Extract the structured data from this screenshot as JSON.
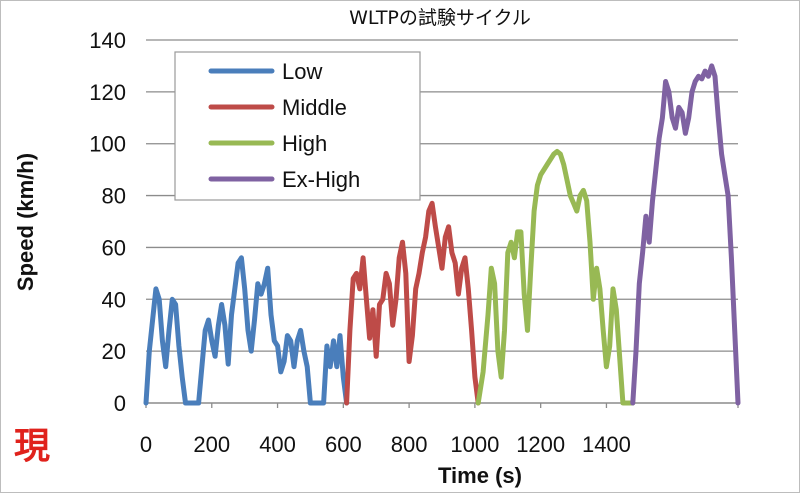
{
  "chart_data": {
    "type": "line",
    "title": "WLTPの試験サイクル",
    "xlabel": "Time (s)",
    "ylabel": "Speed (km/h)",
    "xlim": [
      0,
      1800
    ],
    "ylim": [
      0,
      140
    ],
    "xticks": [
      "0",
      "200",
      "400",
      "600",
      "800",
      "1000",
      "1200",
      "1400",
      ""
    ],
    "xtick_values": [
      0,
      200,
      400,
      600,
      800,
      1000,
      1200,
      1400,
      1800
    ],
    "yticks": [
      "0",
      "20",
      "40",
      "60",
      "80",
      "100",
      "120",
      "140"
    ],
    "ytick_values": [
      0,
      20,
      40,
      60,
      80,
      100,
      120,
      140
    ],
    "grid": "horizontal",
    "legend_position": "top-left",
    "series": [
      {
        "name": "Low",
        "color": "#4a7ebb",
        "points": [
          [
            0,
            0
          ],
          [
            10,
            20
          ],
          [
            20,
            32
          ],
          [
            30,
            44
          ],
          [
            40,
            40
          ],
          [
            50,
            24
          ],
          [
            60,
            14
          ],
          [
            70,
            28
          ],
          [
            80,
            40
          ],
          [
            90,
            38
          ],
          [
            100,
            22
          ],
          [
            110,
            10
          ],
          [
            120,
            0
          ],
          [
            160,
            0
          ],
          [
            170,
            14
          ],
          [
            180,
            28
          ],
          [
            190,
            32
          ],
          [
            200,
            24
          ],
          [
            210,
            18
          ],
          [
            220,
            30
          ],
          [
            230,
            38
          ],
          [
            240,
            30
          ],
          [
            250,
            15
          ],
          [
            260,
            34
          ],
          [
            270,
            44
          ],
          [
            280,
            54
          ],
          [
            290,
            56
          ],
          [
            300,
            44
          ],
          [
            310,
            28
          ],
          [
            320,
            20
          ],
          [
            330,
            32
          ],
          [
            340,
            46
          ],
          [
            350,
            42
          ],
          [
            360,
            46
          ],
          [
            370,
            52
          ],
          [
            380,
            34
          ],
          [
            390,
            24
          ],
          [
            400,
            22
          ],
          [
            410,
            12
          ],
          [
            420,
            16
          ],
          [
            430,
            26
          ],
          [
            440,
            24
          ],
          [
            450,
            14
          ],
          [
            460,
            24
          ],
          [
            470,
            28
          ],
          [
            480,
            20
          ],
          [
            490,
            14
          ],
          [
            500,
            0
          ],
          [
            540,
            0
          ],
          [
            550,
            22
          ],
          [
            560,
            14
          ],
          [
            570,
            24
          ],
          [
            580,
            14
          ],
          [
            590,
            26
          ],
          [
            600,
            10
          ],
          [
            610,
            0
          ]
        ]
      },
      {
        "name": "Middle",
        "color": "#be4b48",
        "points": [
          [
            610,
            0
          ],
          [
            620,
            28
          ],
          [
            630,
            48
          ],
          [
            640,
            50
          ],
          [
            650,
            44
          ],
          [
            660,
            56
          ],
          [
            670,
            40
          ],
          [
            680,
            25
          ],
          [
            690,
            36
          ],
          [
            700,
            18
          ],
          [
            710,
            38
          ],
          [
            720,
            40
          ],
          [
            730,
            50
          ],
          [
            740,
            46
          ],
          [
            750,
            30
          ],
          [
            760,
            40
          ],
          [
            770,
            56
          ],
          [
            780,
            62
          ],
          [
            790,
            50
          ],
          [
            800,
            16
          ],
          [
            810,
            26
          ],
          [
            820,
            44
          ],
          [
            830,
            50
          ],
          [
            840,
            58
          ],
          [
            850,
            64
          ],
          [
            860,
            74
          ],
          [
            870,
            77
          ],
          [
            880,
            68
          ],
          [
            890,
            60
          ],
          [
            900,
            52
          ],
          [
            910,
            64
          ],
          [
            920,
            68
          ],
          [
            930,
            58
          ],
          [
            940,
            54
          ],
          [
            950,
            42
          ],
          [
            960,
            52
          ],
          [
            970,
            56
          ],
          [
            980,
            44
          ],
          [
            990,
            28
          ],
          [
            1000,
            10
          ],
          [
            1010,
            0
          ]
        ]
      },
      {
        "name": "High",
        "color": "#98b954",
        "points": [
          [
            1010,
            0
          ],
          [
            1025,
            12
          ],
          [
            1040,
            34
          ],
          [
            1050,
            52
          ],
          [
            1060,
            46
          ],
          [
            1070,
            20
          ],
          [
            1080,
            10
          ],
          [
            1090,
            28
          ],
          [
            1100,
            58
          ],
          [
            1110,
            62
          ],
          [
            1120,
            56
          ],
          [
            1130,
            66
          ],
          [
            1140,
            66
          ],
          [
            1150,
            42
          ],
          [
            1160,
            28
          ],
          [
            1170,
            52
          ],
          [
            1180,
            74
          ],
          [
            1190,
            84
          ],
          [
            1200,
            88
          ],
          [
            1220,
            92
          ],
          [
            1240,
            96
          ],
          [
            1250,
            97
          ],
          [
            1260,
            96
          ],
          [
            1270,
            92
          ],
          [
            1280,
            86
          ],
          [
            1290,
            80
          ],
          [
            1300,
            77
          ],
          [
            1310,
            74
          ],
          [
            1320,
            80
          ],
          [
            1330,
            82
          ],
          [
            1340,
            78
          ],
          [
            1350,
            62
          ],
          [
            1360,
            40
          ],
          [
            1370,
            52
          ],
          [
            1380,
            44
          ],
          [
            1390,
            28
          ],
          [
            1400,
            14
          ],
          [
            1410,
            22
          ],
          [
            1420,
            44
          ],
          [
            1430,
            36
          ],
          [
            1440,
            18
          ],
          [
            1450,
            0
          ],
          [
            1480,
            0
          ]
        ]
      },
      {
        "name": "Ex-High",
        "color": "#7f62a2",
        "points": [
          [
            1480,
            0
          ],
          [
            1490,
            20
          ],
          [
            1500,
            46
          ],
          [
            1510,
            58
          ],
          [
            1520,
            72
          ],
          [
            1530,
            62
          ],
          [
            1540,
            78
          ],
          [
            1550,
            90
          ],
          [
            1560,
            102
          ],
          [
            1570,
            110
          ],
          [
            1580,
            124
          ],
          [
            1590,
            120
          ],
          [
            1600,
            110
          ],
          [
            1610,
            106
          ],
          [
            1620,
            114
          ],
          [
            1630,
            112
          ],
          [
            1640,
            104
          ],
          [
            1650,
            110
          ],
          [
            1660,
            120
          ],
          [
            1670,
            124
          ],
          [
            1680,
            126
          ],
          [
            1690,
            125
          ],
          [
            1700,
            128
          ],
          [
            1710,
            126
          ],
          [
            1720,
            130
          ],
          [
            1730,
            126
          ],
          [
            1740,
            110
          ],
          [
            1750,
            96
          ],
          [
            1760,
            88
          ],
          [
            1770,
            80
          ],
          [
            1780,
            56
          ],
          [
            1790,
            28
          ],
          [
            1800,
            0
          ]
        ]
      }
    ]
  },
  "overlay": {
    "corner_text": "現"
  }
}
